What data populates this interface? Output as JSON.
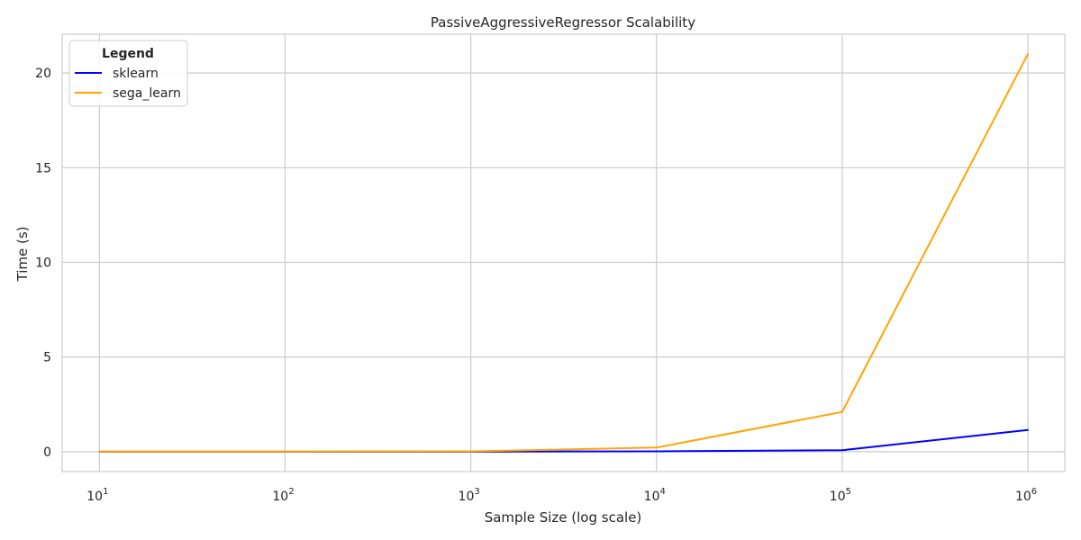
{
  "chart_data": {
    "type": "line",
    "title": "PassiveAggressiveRegressor Scalability",
    "xlabel": "Sample Size (log scale)",
    "ylabel": "Time (s)",
    "xscale": "log",
    "x": [
      10,
      100,
      1000,
      10000,
      100000,
      1000000
    ],
    "xlim": [
      6.3,
      1580000
    ],
    "ylim": [
      -1.05,
      22.05
    ],
    "x_ticks": [
      {
        "value": 10,
        "base": "10",
        "exp": "1"
      },
      {
        "value": 100,
        "base": "10",
        "exp": "2"
      },
      {
        "value": 1000,
        "base": "10",
        "exp": "3"
      },
      {
        "value": 10000,
        "base": "10",
        "exp": "4"
      },
      {
        "value": 100000,
        "base": "10",
        "exp": "5"
      },
      {
        "value": 1000000,
        "base": "10",
        "exp": "6"
      }
    ],
    "y_ticks": [
      {
        "value": 0,
        "label": "0"
      },
      {
        "value": 5,
        "label": "5"
      },
      {
        "value": 10,
        "label": "10"
      },
      {
        "value": 15,
        "label": "15"
      },
      {
        "value": 20,
        "label": "20"
      }
    ],
    "series": [
      {
        "name": "sklearn",
        "color": "#0000ff",
        "values": [
          0.0,
          0.0,
          0.0,
          0.02,
          0.08,
          1.15
        ]
      },
      {
        "name": "sega_learn",
        "color": "#ffa500",
        "values": [
          0.01,
          0.01,
          0.02,
          0.22,
          2.1,
          21.0
        ]
      }
    ],
    "grid": true,
    "legend": {
      "title": "Legend",
      "placement": "top-left"
    }
  }
}
